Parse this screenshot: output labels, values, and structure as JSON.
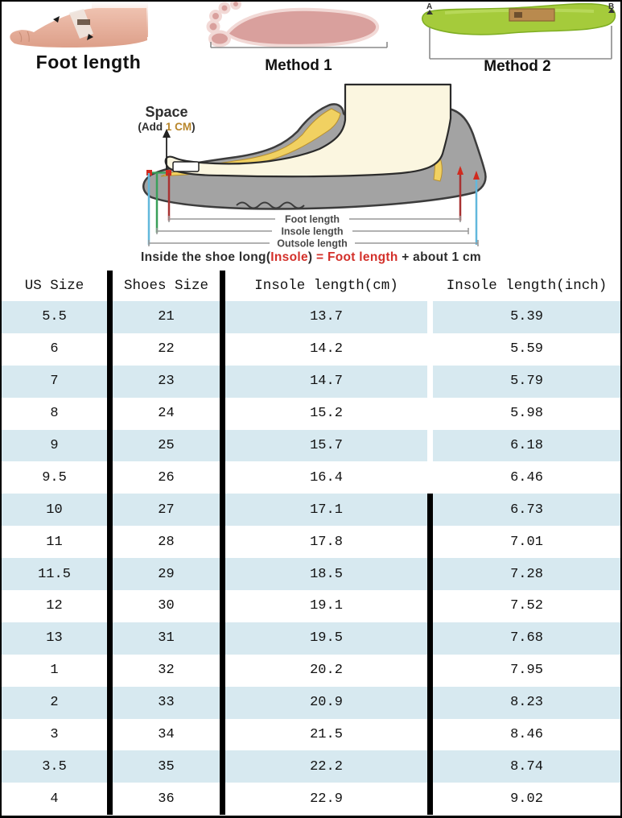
{
  "top": {
    "foot_photo": {
      "label": "Foot length"
    },
    "method1": {
      "label": "Method 1"
    },
    "method2": {
      "label": "Method 2",
      "marker_a": "A",
      "marker_b": "B"
    }
  },
  "diagram": {
    "space": {
      "title": "Space",
      "add_open": "(Add ",
      "add_value": "1 CM",
      "add_close": ")"
    },
    "measure_labels": [
      "Foot length",
      "Insole length",
      "Outsole length"
    ],
    "line_colors": {
      "foot_length": "#a83232",
      "insole_length": "#3aa05a",
      "outsole_length": "#62b8dc",
      "marker_red": "#d12a1e"
    }
  },
  "formula": {
    "prefix": "Inside the shoe long(",
    "insole": "Insole",
    "middle": ") ",
    "equals": "= ",
    "foot": "Foot length",
    "suffix": " + about 1 cm"
  },
  "table": {
    "headers": [
      "US Size",
      "Shoes Size",
      "Insole length(cm)",
      "Insole length(inch)"
    ],
    "rows": [
      [
        "5.5",
        "21",
        "13.7",
        "5.39"
      ],
      [
        "6",
        "22",
        "14.2",
        "5.59"
      ],
      [
        "7",
        "23",
        "14.7",
        "5.79"
      ],
      [
        "8",
        "24",
        "15.2",
        "5.98"
      ],
      [
        "9",
        "25",
        "15.7",
        "6.18"
      ],
      [
        "9.5",
        "26",
        "16.4",
        "6.46"
      ],
      [
        "10",
        "27",
        "17.1",
        "6.73"
      ],
      [
        "11",
        "28",
        "17.8",
        "7.01"
      ],
      [
        "11.5",
        "29",
        "18.5",
        "7.28"
      ],
      [
        "12",
        "30",
        "19.1",
        "7.52"
      ],
      [
        "13",
        "31",
        "19.5",
        "7.68"
      ],
      [
        "1",
        "32",
        "20.2",
        "7.95"
      ],
      [
        "2",
        "33",
        "20.9",
        "8.23"
      ],
      [
        "3",
        "34",
        "21.5",
        "8.46"
      ],
      [
        "3.5",
        "35",
        "22.2",
        "8.74"
      ],
      [
        "4",
        "36",
        "22.9",
        "9.02"
      ]
    ],
    "black_divider_start_row": 6,
    "colors": {
      "row_alt": "#d7e9f0",
      "row_plain": "#ffffff",
      "divider": "#000000"
    }
  },
  "colors": {
    "accent_red": "#d3302a",
    "add_cm_orange": "#b8862b",
    "shoe_gray": "#a3a3a3",
    "insole_yellow": "#f1d161",
    "foot_cream": "#fbf6e0",
    "skin": "#e5ae9b",
    "footprint_rose": "#d9a09d",
    "insole_green": "#a5cb3b"
  }
}
